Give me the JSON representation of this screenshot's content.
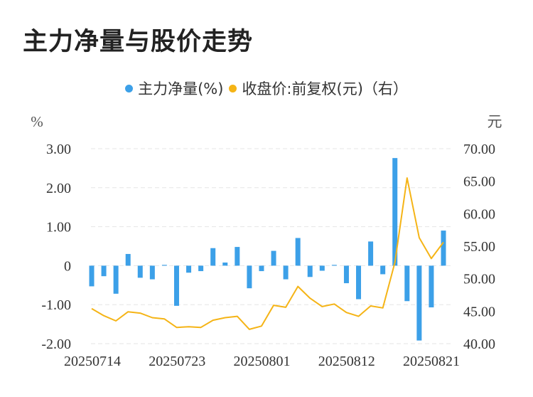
{
  "title": "主力净量与股价走势",
  "legend": {
    "series1": "主力净量(%)",
    "series2": "收盘价:前复权(元)（右）"
  },
  "colors": {
    "bar": "#3ca0e8",
    "line": "#f5b416",
    "grid": "#e6e6e6",
    "text": "#333333"
  },
  "chart_data": {
    "type": "bar+line",
    "left_axis": {
      "unit": "%",
      "ylim": [
        -2,
        3
      ],
      "ticks": [
        "3.00",
        "2.00",
        "1.00",
        "0",
        "-1.00",
        "-2.00"
      ]
    },
    "right_axis": {
      "unit": "元",
      "ylim": [
        40,
        70
      ],
      "ticks": [
        "70.00",
        "65.00",
        "60.00",
        "55.00",
        "50.00",
        "45.00",
        "40.00"
      ]
    },
    "x_tick_labels": [
      "20250714",
      "20250723",
      "20250801",
      "20250812",
      "20250821"
    ],
    "series": [
      {
        "name": "主力净量(%)",
        "type": "bar",
        "axis": "left",
        "values": [
          -0.53,
          -0.27,
          -0.72,
          0.3,
          -0.31,
          -0.35,
          0.02,
          -1.03,
          -0.18,
          -0.14,
          0.45,
          0.08,
          0.48,
          -0.58,
          -0.14,
          0.38,
          -0.35,
          0.71,
          -0.29,
          -0.13,
          0.02,
          -0.45,
          -0.86,
          0.62,
          -0.22,
          2.76,
          -0.91,
          -1.92,
          -1.07,
          0.9
        ]
      },
      {
        "name": "收盘价:前复权(元)（右）",
        "type": "line",
        "axis": "right",
        "values": [
          45.4,
          44.3,
          43.5,
          44.9,
          44.7,
          44.0,
          43.8,
          42.5,
          42.6,
          42.5,
          43.6,
          44.0,
          44.2,
          42.2,
          42.7,
          45.9,
          45.6,
          48.8,
          47.0,
          45.7,
          46.1,
          44.8,
          44.2,
          45.8,
          45.5,
          52.5,
          65.5,
          56.3,
          53.1,
          55.6
        ]
      }
    ]
  }
}
